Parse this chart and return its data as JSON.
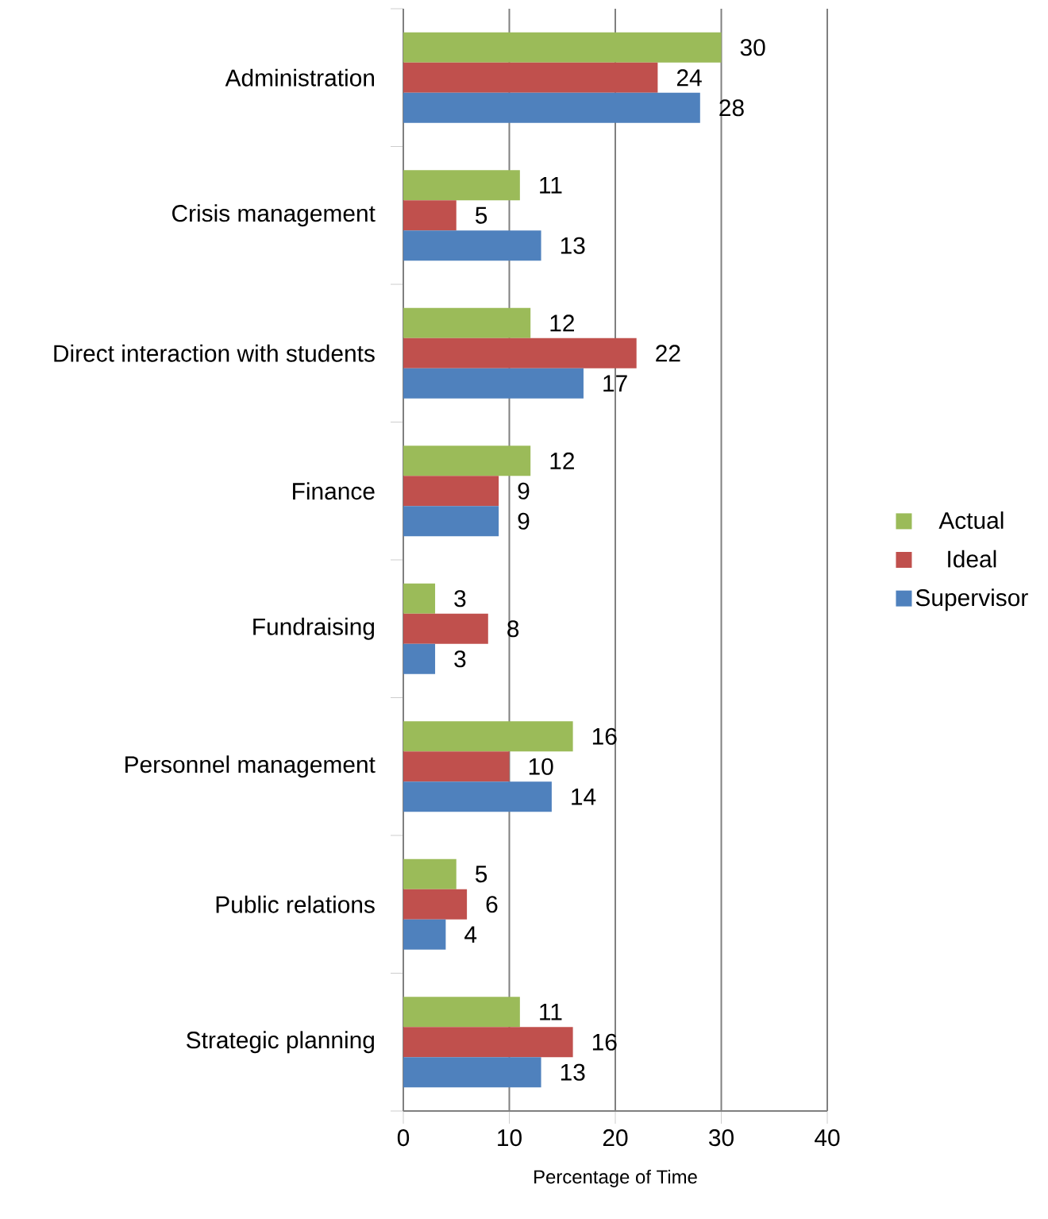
{
  "chart_data": {
    "type": "bar",
    "orientation": "horizontal",
    "xlabel": "Percentage of Time",
    "categories": [
      "Administration",
      "Crisis management",
      "Direct interaction  with students",
      "Finance",
      "Fundraising",
      "Personnel management",
      "Public relations",
      "Strategic planning"
    ],
    "series": [
      {
        "name": "Actual",
        "color": "#9bbb59",
        "values": [
          30,
          11,
          12,
          12,
          3,
          16,
          5,
          11
        ]
      },
      {
        "name": "Ideal",
        "color": "#c0504d",
        "values": [
          24,
          5,
          22,
          9,
          8,
          10,
          6,
          16
        ]
      },
      {
        "name": "Supervisor",
        "color": "#4f81bd",
        "values": [
          28,
          13,
          17,
          9,
          3,
          14,
          4,
          13
        ]
      }
    ],
    "xlim": [
      0,
      40
    ],
    "xticks": [
      0,
      10,
      20,
      30,
      40
    ],
    "grid": "x",
    "legend": "right",
    "data_labels": true
  }
}
